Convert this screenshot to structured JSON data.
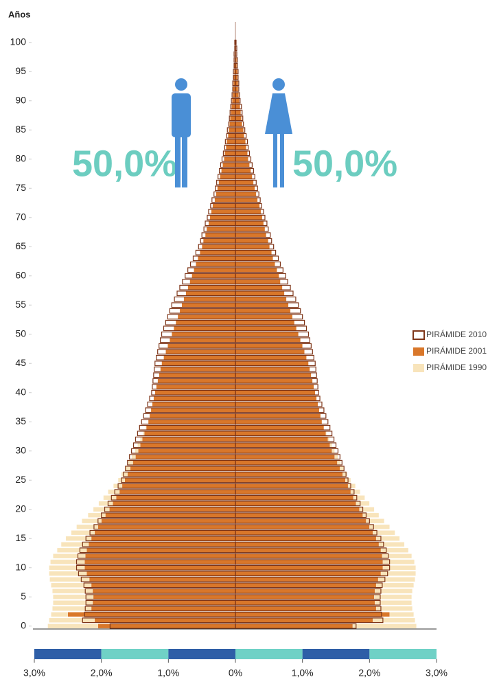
{
  "chart_data": {
    "type": "pyramid",
    "y_label": "Años",
    "annotations": [
      "50,0%",
      "50,0%"
    ],
    "xlim": [
      -3,
      3
    ],
    "xticks": [
      {
        "value": -3,
        "label": "3,0%"
      },
      {
        "value": -2,
        "label": "2,0%"
      },
      {
        "value": -1,
        "label": "1,0%"
      },
      {
        "value": 0,
        "label": "0%"
      },
      {
        "value": 1,
        "label": "1,0%"
      },
      {
        "value": 2,
        "label": "2,0%"
      },
      {
        "value": 3,
        "label": "3,0%"
      }
    ],
    "ylim": [
      -0.5,
      103.5
    ],
    "yticks": [
      0,
      5,
      10,
      15,
      20,
      25,
      30,
      35,
      40,
      45,
      50,
      55,
      60,
      65,
      70,
      75,
      80,
      85,
      90,
      95,
      100
    ],
    "ages": [
      0,
      1,
      2,
      3,
      4,
      5,
      6,
      7,
      8,
      9,
      10,
      11,
      12,
      13,
      14,
      15,
      16,
      17,
      18,
      19,
      20,
      21,
      22,
      23,
      24,
      25,
      26,
      27,
      28,
      29,
      30,
      31,
      32,
      33,
      34,
      35,
      36,
      37,
      38,
      39,
      40,
      41,
      42,
      43,
      44,
      45,
      46,
      47,
      48,
      49,
      50,
      51,
      52,
      53,
      54,
      55,
      56,
      57,
      58,
      59,
      60,
      61,
      62,
      63,
      64,
      65,
      66,
      67,
      68,
      69,
      70,
      71,
      72,
      73,
      74,
      75,
      76,
      77,
      78,
      79,
      80,
      81,
      82,
      83,
      84,
      85,
      86,
      87,
      88,
      89,
      90,
      91,
      92,
      93,
      94,
      95,
      96,
      97,
      98,
      99,
      100
    ],
    "series": [
      {
        "name": "PIRÁMIDE 1990",
        "color": "#f8e4bb",
        "style": "fill",
        "male": [
          2.8,
          2.78,
          2.75,
          2.73,
          2.72,
          2.72,
          2.73,
          2.75,
          2.77,
          2.78,
          2.78,
          2.76,
          2.72,
          2.66,
          2.6,
          2.53,
          2.45,
          2.37,
          2.29,
          2.2,
          2.12,
          2.04,
          1.97,
          1.9,
          1.82,
          1.75,
          1.7,
          1.65,
          1.6,
          1.55,
          1.5,
          1.46,
          1.42,
          1.38,
          1.34,
          1.3,
          1.26,
          1.22,
          1.18,
          1.14,
          1.1,
          1.07,
          1.04,
          1.01,
          0.98,
          0.95,
          0.93,
          0.91,
          0.89,
          0.87,
          0.85,
          0.82,
          0.79,
          0.76,
          0.73,
          0.7,
          0.67,
          0.64,
          0.61,
          0.58,
          0.55,
          0.52,
          0.49,
          0.46,
          0.43,
          0.4,
          0.38,
          0.36,
          0.34,
          0.32,
          0.3,
          0.28,
          0.26,
          0.24,
          0.22,
          0.2,
          0.19,
          0.17,
          0.16,
          0.14,
          0.13,
          0.12,
          0.11,
          0.1,
          0.09,
          0.08,
          0.07,
          0.06,
          0.05,
          0.05,
          0.04,
          0.03,
          0.03,
          0.02,
          0.02,
          0.02,
          0.01,
          0.01,
          0.01,
          0.01,
          0.01
        ],
        "female": [
          2.7,
          2.68,
          2.66,
          2.64,
          2.63,
          2.63,
          2.64,
          2.66,
          2.68,
          2.69,
          2.69,
          2.67,
          2.63,
          2.58,
          2.52,
          2.45,
          2.38,
          2.3,
          2.22,
          2.14,
          2.07,
          2.0,
          1.93,
          1.86,
          1.79,
          1.72,
          1.67,
          1.62,
          1.57,
          1.53,
          1.48,
          1.44,
          1.4,
          1.36,
          1.32,
          1.28,
          1.24,
          1.21,
          1.17,
          1.13,
          1.09,
          1.07,
          1.04,
          1.01,
          0.98,
          0.95,
          0.93,
          0.91,
          0.89,
          0.87,
          0.85,
          0.82,
          0.79,
          0.76,
          0.73,
          0.7,
          0.67,
          0.64,
          0.61,
          0.58,
          0.55,
          0.52,
          0.49,
          0.46,
          0.43,
          0.4,
          0.38,
          0.36,
          0.34,
          0.32,
          0.3,
          0.28,
          0.26,
          0.24,
          0.22,
          0.2,
          0.19,
          0.17,
          0.16,
          0.14,
          0.13,
          0.12,
          0.11,
          0.1,
          0.09,
          0.08,
          0.07,
          0.06,
          0.05,
          0.05,
          0.04,
          0.03,
          0.03,
          0.02,
          0.02,
          0.02,
          0.01,
          0.01,
          0.01,
          0.01,
          0.01
        ]
      },
      {
        "name": "PIRÁMIDE 2001",
        "color": "#d9772a",
        "style": "fill",
        "male": [
          2.05,
          2.1,
          2.5,
          2.15,
          2.13,
          2.12,
          2.13,
          2.15,
          2.18,
          2.22,
          2.25,
          2.25,
          2.24,
          2.22,
          2.19,
          2.15,
          2.1,
          2.05,
          2.0,
          1.94,
          1.88,
          1.83,
          1.78,
          1.73,
          1.69,
          1.65,
          1.61,
          1.57,
          1.53,
          1.49,
          1.45,
          1.42,
          1.39,
          1.36,
          1.33,
          1.3,
          1.28,
          1.26,
          1.24,
          1.22,
          1.2,
          1.18,
          1.16,
          1.14,
          1.12,
          1.1,
          1.07,
          1.04,
          1.01,
          0.98,
          0.95,
          0.92,
          0.89,
          0.86,
          0.83,
          0.8,
          0.77,
          0.74,
          0.71,
          0.68,
          0.65,
          0.62,
          0.59,
          0.56,
          0.53,
          0.5,
          0.48,
          0.45,
          0.43,
          0.4,
          0.38,
          0.36,
          0.34,
          0.31,
          0.29,
          0.27,
          0.25,
          0.23,
          0.21,
          0.19,
          0.17,
          0.16,
          0.14,
          0.13,
          0.11,
          0.1,
          0.09,
          0.08,
          0.07,
          0.06,
          0.05,
          0.04,
          0.04,
          0.03,
          0.03,
          0.02,
          0.02,
          0.01,
          0.01,
          0.01,
          0.01
        ],
        "female": [
          1.75,
          2.05,
          2.3,
          2.1,
          2.08,
          2.07,
          2.08,
          2.1,
          2.13,
          2.17,
          2.2,
          2.2,
          2.19,
          2.17,
          2.14,
          2.1,
          2.05,
          2.0,
          1.95,
          1.9,
          1.85,
          1.8,
          1.76,
          1.72,
          1.68,
          1.64,
          1.6,
          1.56,
          1.52,
          1.48,
          1.44,
          1.41,
          1.38,
          1.35,
          1.32,
          1.29,
          1.27,
          1.25,
          1.23,
          1.21,
          1.19,
          1.17,
          1.15,
          1.13,
          1.11,
          1.09,
          1.06,
          1.03,
          1.0,
          0.97,
          0.94,
          0.91,
          0.88,
          0.85,
          0.82,
          0.79,
          0.76,
          0.73,
          0.7,
          0.67,
          0.65,
          0.62,
          0.59,
          0.56,
          0.54,
          0.51,
          0.49,
          0.46,
          0.44,
          0.42,
          0.4,
          0.38,
          0.36,
          0.33,
          0.31,
          0.29,
          0.27,
          0.25,
          0.23,
          0.21,
          0.19,
          0.18,
          0.16,
          0.15,
          0.13,
          0.12,
          0.1,
          0.09,
          0.08,
          0.07,
          0.06,
          0.05,
          0.04,
          0.04,
          0.03,
          0.03,
          0.02,
          0.02,
          0.01,
          0.01,
          0.01
        ]
      },
      {
        "name": "PIRÁMIDE 2010",
        "color": "#7e3518",
        "style": "outline",
        "male": [
          1.87,
          2.28,
          2.25,
          2.24,
          2.23,
          2.23,
          2.24,
          2.26,
          2.3,
          2.34,
          2.37,
          2.37,
          2.35,
          2.32,
          2.28,
          2.23,
          2.17,
          2.11,
          2.05,
          2.0,
          1.95,
          1.9,
          1.85,
          1.8,
          1.75,
          1.7,
          1.67,
          1.64,
          1.61,
          1.58,
          1.55,
          1.52,
          1.49,
          1.46,
          1.43,
          1.4,
          1.37,
          1.34,
          1.31,
          1.28,
          1.25,
          1.24,
          1.23,
          1.22,
          1.21,
          1.2,
          1.18,
          1.16,
          1.14,
          1.12,
          1.1,
          1.07,
          1.04,
          1.01,
          0.98,
          0.95,
          0.91,
          0.87,
          0.83,
          0.79,
          0.75,
          0.71,
          0.67,
          0.63,
          0.59,
          0.55,
          0.52,
          0.5,
          0.47,
          0.45,
          0.42,
          0.4,
          0.37,
          0.35,
          0.32,
          0.3,
          0.28,
          0.26,
          0.24,
          0.22,
          0.2,
          0.18,
          0.16,
          0.15,
          0.13,
          0.12,
          0.1,
          0.09,
          0.08,
          0.07,
          0.06,
          0.05,
          0.04,
          0.04,
          0.03,
          0.03,
          0.02,
          0.02,
          0.02,
          0.01,
          0.01
        ],
        "female": [
          1.8,
          2.2,
          2.18,
          2.17,
          2.16,
          2.16,
          2.17,
          2.19,
          2.23,
          2.27,
          2.3,
          2.3,
          2.28,
          2.25,
          2.21,
          2.17,
          2.11,
          2.06,
          2.0,
          1.95,
          1.9,
          1.86,
          1.81,
          1.77,
          1.72,
          1.68,
          1.65,
          1.62,
          1.59,
          1.56,
          1.53,
          1.5,
          1.47,
          1.44,
          1.41,
          1.38,
          1.35,
          1.32,
          1.29,
          1.26,
          1.24,
          1.23,
          1.22,
          1.21,
          1.2,
          1.19,
          1.17,
          1.15,
          1.13,
          1.11,
          1.09,
          1.06,
          1.03,
          1.0,
          0.97,
          0.94,
          0.9,
          0.86,
          0.82,
          0.78,
          0.75,
          0.71,
          0.67,
          0.64,
          0.6,
          0.57,
          0.54,
          0.52,
          0.49,
          0.47,
          0.44,
          0.42,
          0.39,
          0.37,
          0.35,
          0.33,
          0.31,
          0.29,
          0.27,
          0.25,
          0.23,
          0.21,
          0.19,
          0.18,
          0.16,
          0.14,
          0.12,
          0.11,
          0.1,
          0.09,
          0.07,
          0.06,
          0.05,
          0.05,
          0.04,
          0.04,
          0.03,
          0.03,
          0.02,
          0.02,
          0.01
        ]
      }
    ]
  }
}
